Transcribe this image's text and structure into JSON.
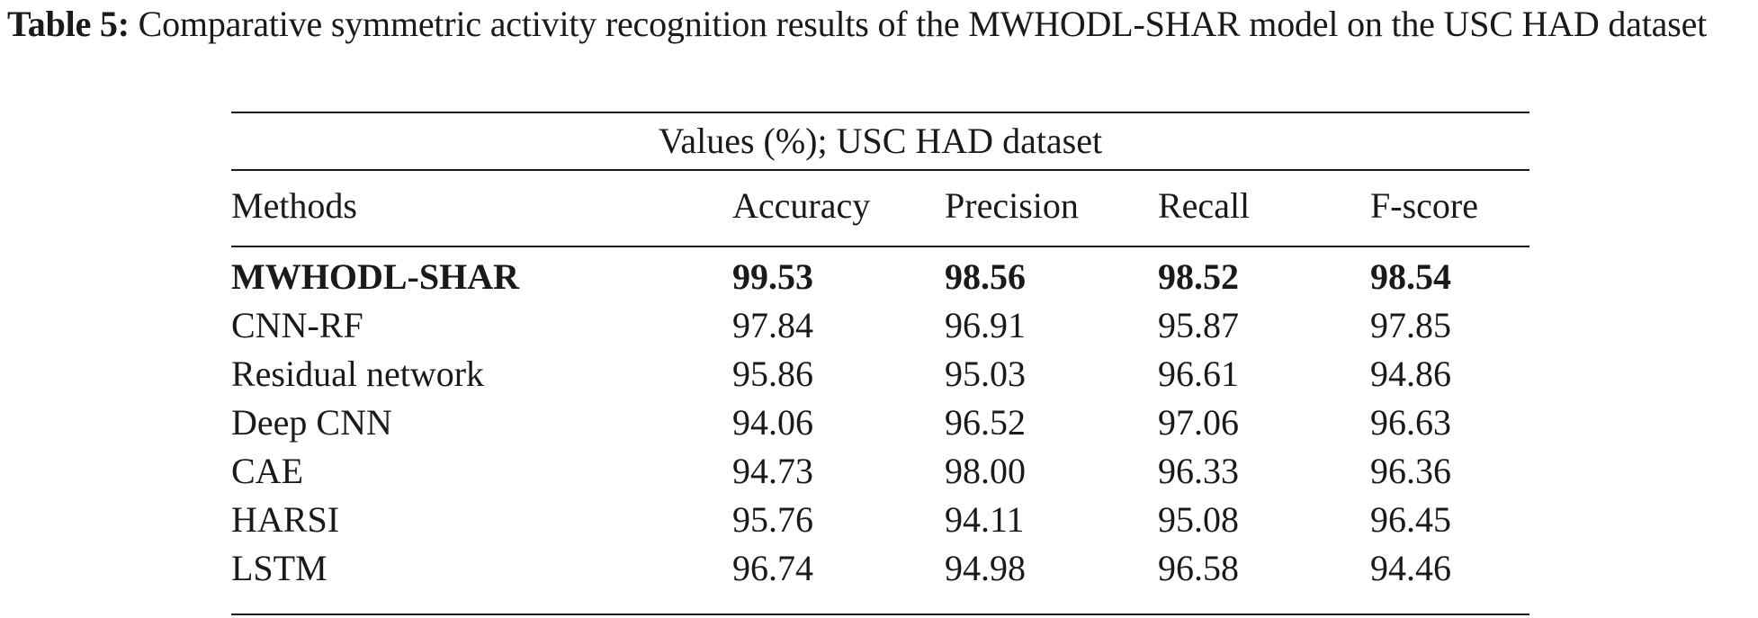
{
  "caption": {
    "label": "Table 5:",
    "text": "Comparative symmetric activity recognition results of the MWHODL-SHAR model on the USC HAD dataset"
  },
  "table": {
    "super_header": "Values (%); USC HAD dataset",
    "columns": [
      "Methods",
      "Accuracy",
      "Precision",
      "Recall",
      "F-score"
    ],
    "rows": [
      {
        "method": "MWHODL-SHAR",
        "accuracy": "99.53",
        "precision": "98.56",
        "recall": "98.52",
        "fscore": "98.54",
        "bold": true
      },
      {
        "method": "CNN-RF",
        "accuracy": "97.84",
        "precision": "96.91",
        "recall": "95.87",
        "fscore": "97.85"
      },
      {
        "method": "Residual network",
        "accuracy": "95.86",
        "precision": "95.03",
        "recall": "96.61",
        "fscore": "94.86"
      },
      {
        "method": "Deep CNN",
        "accuracy": "94.06",
        "precision": "96.52",
        "recall": "97.06",
        "fscore": "96.63"
      },
      {
        "method": "CAE",
        "accuracy": "94.73",
        "precision": "98.00",
        "recall": "96.33",
        "fscore": "96.36"
      },
      {
        "method": "HARSI",
        "accuracy": "95.76",
        "precision": "94.11",
        "recall": "95.08",
        "fscore": "96.45"
      },
      {
        "method": "LSTM",
        "accuracy": "96.74",
        "precision": "94.98",
        "recall": "96.58",
        "fscore": "94.46"
      }
    ]
  }
}
